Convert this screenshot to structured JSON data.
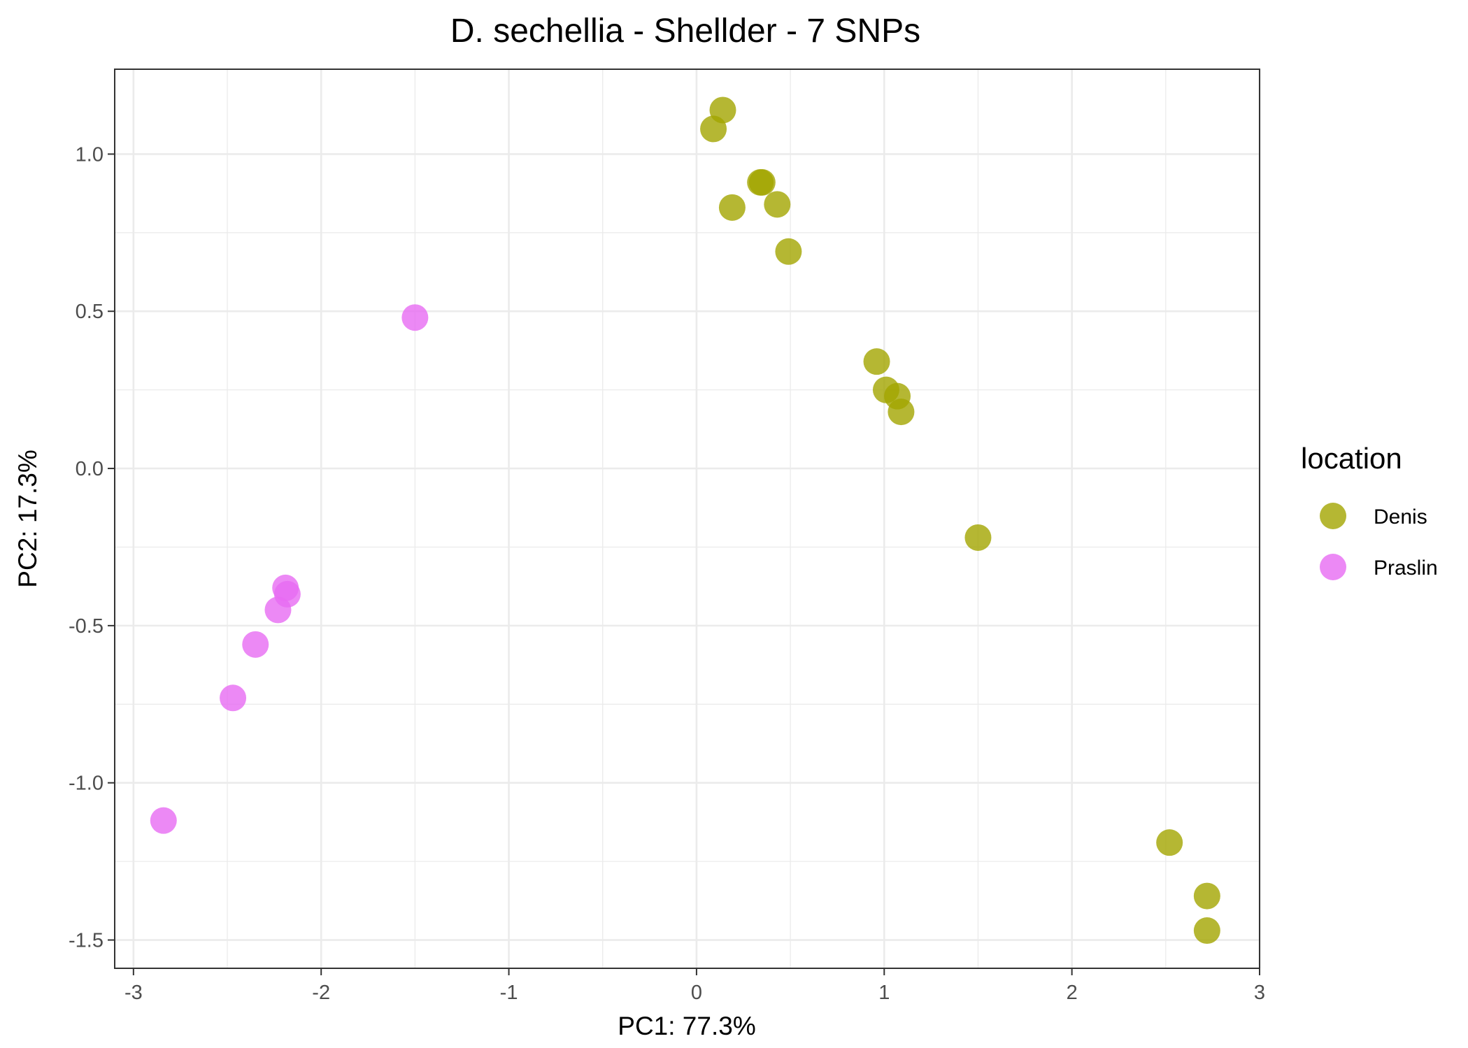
{
  "chart_data": {
    "type": "scatter",
    "title": "D. sechellia - Shellder - 7 SNPs",
    "xlabel": "PC1: 77.3%",
    "ylabel": "PC2: 17.3%",
    "xlim": [
      -3.1,
      3.0
    ],
    "ylim": [
      -1.59,
      1.27
    ],
    "x_ticks": [
      -3,
      -2,
      -1,
      0,
      1,
      2,
      3
    ],
    "x_tick_labels": [
      "-3",
      "-2",
      "-1",
      "0",
      "1",
      "2",
      "3"
    ],
    "y_ticks": [
      1.0,
      0.5,
      0.0,
      -0.5,
      -1.0,
      -1.5
    ],
    "y_tick_labels": [
      "1.0",
      "0.5",
      "0.0",
      "-0.5",
      "-1.0",
      "-1.5"
    ],
    "grid": true,
    "legend": {
      "title": "location",
      "position": "right"
    },
    "series": [
      {
        "name": "Denis",
        "color": "#a3a500",
        "points": [
          {
            "x": 0.09,
            "y": 1.08
          },
          {
            "x": 0.14,
            "y": 1.14
          },
          {
            "x": 0.34,
            "y": 0.91
          },
          {
            "x": 0.35,
            "y": 0.91
          },
          {
            "x": 0.19,
            "y": 0.83
          },
          {
            "x": 0.43,
            "y": 0.84
          },
          {
            "x": 0.49,
            "y": 0.69
          },
          {
            "x": 0.96,
            "y": 0.34
          },
          {
            "x": 1.01,
            "y": 0.25
          },
          {
            "x": 1.07,
            "y": 0.23
          },
          {
            "x": 1.09,
            "y": 0.18
          },
          {
            "x": 1.5,
            "y": -0.22
          },
          {
            "x": 2.52,
            "y": -1.19
          },
          {
            "x": 2.72,
            "y": -1.36
          },
          {
            "x": 2.72,
            "y": -1.47
          }
        ]
      },
      {
        "name": "Praslin",
        "color": "#e76bf3",
        "points": [
          {
            "x": -1.5,
            "y": 0.48
          },
          {
            "x": -2.19,
            "y": -0.38
          },
          {
            "x": -2.18,
            "y": -0.4
          },
          {
            "x": -2.23,
            "y": -0.45
          },
          {
            "x": -2.35,
            "y": -0.56
          },
          {
            "x": -2.47,
            "y": -0.73
          },
          {
            "x": -2.84,
            "y": -1.12
          }
        ]
      }
    ]
  }
}
